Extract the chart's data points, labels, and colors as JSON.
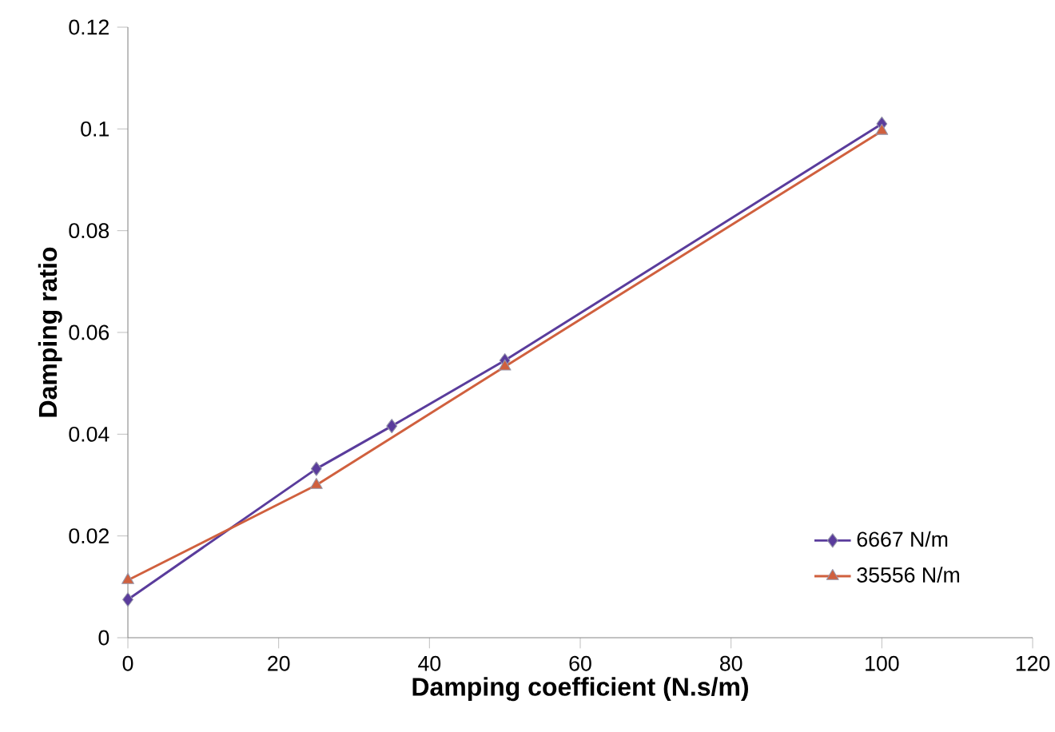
{
  "chart_data": {
    "type": "line",
    "xlabel": "Damping coefficient (N.s/m)",
    "ylabel": "Damping ratio",
    "xlim": [
      0,
      120
    ],
    "xticks": [
      0,
      20,
      40,
      60,
      80,
      100,
      120
    ],
    "ylim": [
      0,
      0.12
    ],
    "yticks": [
      0,
      0.02,
      0.04,
      0.06,
      0.08,
      0.1,
      0.12
    ],
    "grid": false,
    "legend": "right",
    "line_style": "solid",
    "series": [
      {
        "name": "6667 N/m",
        "color": "#5a3c9c",
        "marker": "diamond",
        "x": [
          0,
          25,
          35,
          50,
          100
        ],
        "values": [
          0.0075,
          0.0332,
          0.0416,
          0.0545,
          0.101
        ]
      },
      {
        "name": "35556 N/m",
        "color": "#d0603e",
        "marker": "triangle",
        "x": [
          0,
          25,
          50,
          100
        ],
        "values": [
          0.0113,
          0.03,
          0.0533,
          0.0996
        ]
      }
    ]
  }
}
